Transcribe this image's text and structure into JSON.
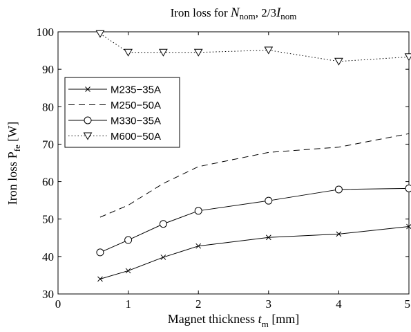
{
  "chart_data": {
    "type": "line",
    "title": {
      "prefix": "Iron loss for ",
      "var1": "N",
      "sub1": "nom",
      "mid": ", 2/3",
      "var2": "I",
      "sub2": "nom"
    },
    "xlabel": {
      "main": "Magnet thickness ",
      "var": "t",
      "sub": "m",
      "unit": " [mm]"
    },
    "ylabel": {
      "main": "Iron loss P",
      "sub": "fe",
      "unit": " [W]"
    },
    "xlim": [
      0,
      5
    ],
    "ylim": [
      30,
      100
    ],
    "xticks": [
      0,
      1,
      2,
      3,
      4,
      5
    ],
    "yticks": [
      30,
      40,
      50,
      60,
      70,
      80,
      90,
      100
    ],
    "legend_position": "upper-left",
    "grid": false,
    "series": [
      {
        "name": "M235−35A",
        "line": "solid",
        "marker": "x",
        "x": [
          0.6,
          1,
          1.5,
          2,
          3,
          4,
          5
        ],
        "y": [
          34,
          36.2,
          39.8,
          42.8,
          45.1,
          46,
          48
        ]
      },
      {
        "name": "M250−50A",
        "line": "dashed",
        "marker": "none",
        "x": [
          0.6,
          1,
          1.5,
          2,
          3,
          4,
          5
        ],
        "y": [
          50.5,
          53.7,
          59.5,
          64,
          67.8,
          69.2,
          72.8
        ]
      },
      {
        "name": "M330−35A",
        "line": "solid",
        "marker": "circle",
        "x": [
          0.6,
          1,
          1.5,
          2,
          3,
          4,
          5
        ],
        "y": [
          41.1,
          44.4,
          48.7,
          52.2,
          54.9,
          57.9,
          58.2
        ]
      },
      {
        "name": "M600−50A",
        "line": "dotted",
        "marker": "triangle-down",
        "x": [
          0.6,
          1,
          1.5,
          2,
          3,
          4,
          5
        ],
        "y": [
          99.5,
          94.5,
          94.5,
          94.5,
          95.1,
          92.1,
          93.3
        ]
      }
    ]
  }
}
